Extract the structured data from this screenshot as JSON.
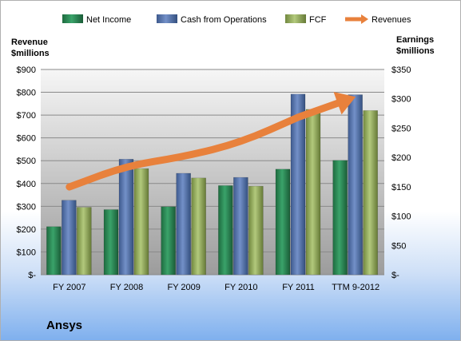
{
  "company": "Ansys",
  "chart_data": {
    "type": "bar",
    "categories": [
      "FY 2007",
      "FY 2008",
      "FY 2009",
      "FY 2010",
      "FY 2011",
      "TTM 9-2012"
    ],
    "series": [
      {
        "name": "Net Income",
        "axis": "right",
        "color": "#2e8b57",
        "values": [
          82,
          111,
          116,
          152,
          180,
          195
        ]
      },
      {
        "name": "Cash from Operations",
        "axis": "right",
        "color": "#5b79b1",
        "values": [
          127,
          197,
          173,
          166,
          308,
          307
        ]
      },
      {
        "name": "FCF",
        "axis": "right",
        "color": "#98b062",
        "values": [
          115,
          181,
          165,
          151,
          282,
          280
        ]
      },
      {
        "name": "Revenues",
        "axis": "left",
        "type": "arrow-line",
        "color": "#e8813c",
        "values": [
          385,
          478,
          517,
          580,
          691,
          780
        ]
      }
    ],
    "legend": [
      "Net Income",
      "Cash from Operations",
      "FCF",
      "Revenues"
    ],
    "legend_position": "top",
    "ylabel_left": [
      "Revenue",
      "$millions"
    ],
    "ylabel_right": [
      "Earnings",
      "$millions"
    ],
    "ylim_left": [
      0,
      900
    ],
    "ylim_right": [
      0,
      350
    ],
    "yticks_left": [
      "$-",
      "$100",
      "$200",
      "$300",
      "$400",
      "$500",
      "$600",
      "$700",
      "$800",
      "$900"
    ],
    "yticks_right": [
      "$-",
      "$50",
      "$100",
      "$150",
      "$200",
      "$250",
      "$300",
      "$350"
    ],
    "grid": true
  }
}
